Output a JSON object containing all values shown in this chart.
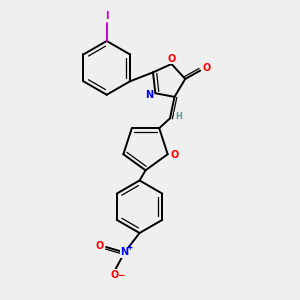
{
  "background_color": "#efefef",
  "bond_color": "#000000",
  "atom_colors": {
    "O": "#ff0000",
    "N": "#0000ff",
    "I": "#cc00cc",
    "H": "#5f9ea0",
    "C": "#000000"
  },
  "figsize": [
    3.0,
    3.0
  ],
  "dpi": 100,
  "xlim": [
    0,
    10
  ],
  "ylim": [
    0,
    10
  ]
}
